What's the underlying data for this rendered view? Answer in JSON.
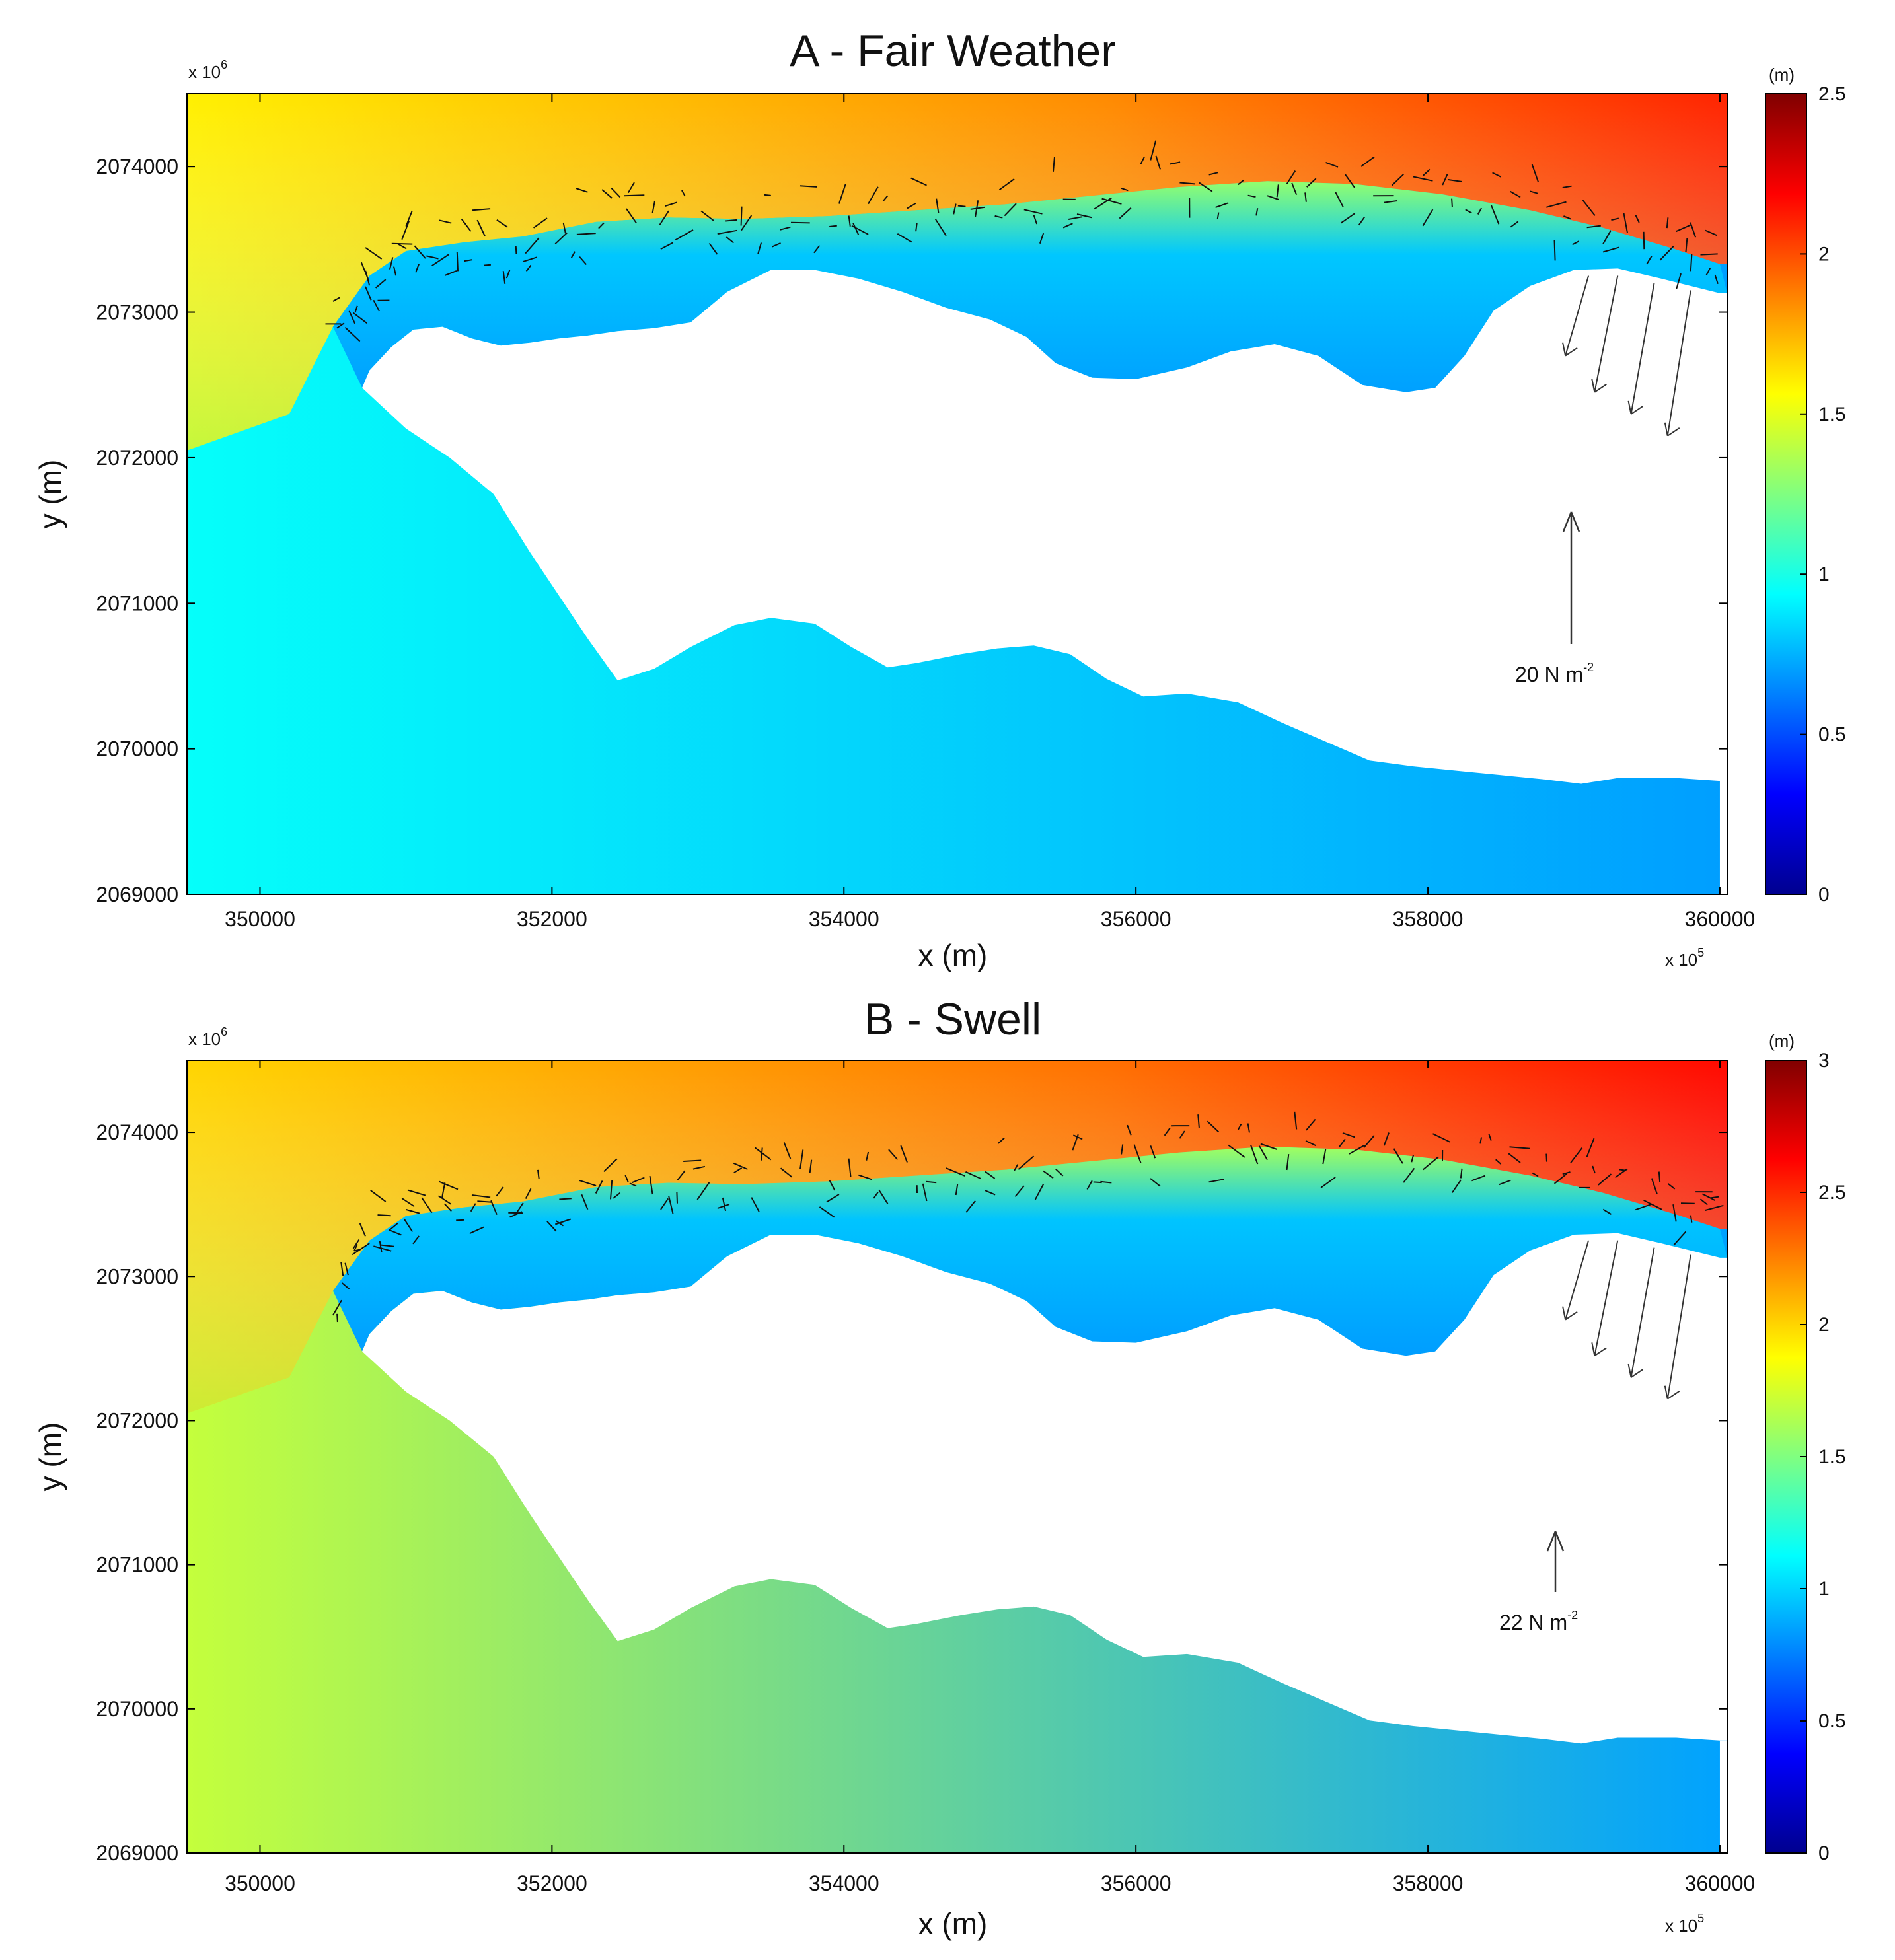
{
  "chart_data": [
    {
      "type": "heatmap",
      "panel": "A",
      "title": "A - Fair Weather",
      "xlabel": "x (m)",
      "ylabel": "y (m)",
      "x_multiplier": "x 10",
      "x_multiplier_exp": "5",
      "y_multiplier": "x 10",
      "y_multiplier_exp": "6",
      "xlim": [
        349500,
        360050
      ],
      "ylim": [
        2069000,
        2074500
      ],
      "xticks": [
        350000,
        352000,
        354000,
        356000,
        358000,
        360000
      ],
      "yticks": [
        2069000,
        2070000,
        2071000,
        2072000,
        2073000,
        2074000
      ],
      "xtick_labels": [
        "350000",
        "352000",
        "354000",
        "356000",
        "358000",
        "360000"
      ],
      "ytick_labels": [
        "2069000",
        "2070000",
        "2071000",
        "2072000",
        "2073000",
        "2074000"
      ],
      "colorbar": {
        "unit": "(m)",
        "range": [
          0,
          2.5
        ],
        "ticks": [
          0,
          0.5,
          1,
          1.5,
          2,
          2.5
        ],
        "tick_labels": [
          "0",
          "0.5",
          "1",
          "1.5",
          "2",
          "2.5"
        ],
        "colormap": [
          "#00008f",
          "#0000ff",
          "#0080ff",
          "#00ffff",
          "#80ff80",
          "#ffff00",
          "#ff8000",
          "#ff0000",
          "#800000"
        ]
      },
      "scale_arrow": {
        "value": 20,
        "label": "20 N m",
        "label_exp": "-2"
      },
      "sample_levels": {
        "offshore_north_west": 1.6,
        "offshore_north_east": 2.1,
        "reef_crest": 1.3,
        "lagoon_north": 0.8,
        "open_west": 0.95,
        "southern_nearshore": 0.7
      }
    },
    {
      "type": "heatmap",
      "panel": "B",
      "title": "B - Swell",
      "xlabel": "x (m)",
      "ylabel": "y (m)",
      "x_multiplier": "x 10",
      "x_multiplier_exp": "5",
      "y_multiplier": "x 10",
      "y_multiplier_exp": "6",
      "xlim": [
        349500,
        360050
      ],
      "ylim": [
        2069000,
        2074500
      ],
      "xticks": [
        350000,
        352000,
        354000,
        356000,
        358000,
        360000
      ],
      "yticks": [
        2069000,
        2070000,
        2071000,
        2072000,
        2073000,
        2074000
      ],
      "xtick_labels": [
        "350000",
        "352000",
        "354000",
        "356000",
        "358000",
        "360000"
      ],
      "ytick_labels": [
        "2069000",
        "2070000",
        "2071000",
        "2072000",
        "2073000",
        "2074000"
      ],
      "colorbar": {
        "unit": "(m)",
        "range": [
          0,
          3
        ],
        "ticks": [
          0,
          0.5,
          1,
          1.5,
          2,
          2.5,
          3
        ],
        "tick_labels": [
          "0",
          "0.5",
          "1",
          "1.5",
          "2",
          "2.5",
          "3"
        ],
        "colormap": [
          "#00008f",
          "#0000ff",
          "#0080ff",
          "#00ffff",
          "#80ff80",
          "#ffff00",
          "#ff8000",
          "#ff0000",
          "#800000"
        ]
      },
      "scale_arrow": {
        "value": 22,
        "label": "22 N m",
        "label_exp": "-2"
      },
      "sample_levels": {
        "offshore_north_west": 2.0,
        "offshore_north_east": 2.6,
        "reef_crest": 1.6,
        "lagoon_north": 0.95,
        "open_west": 1.7,
        "southern_nearshore": 0.85
      }
    }
  ]
}
